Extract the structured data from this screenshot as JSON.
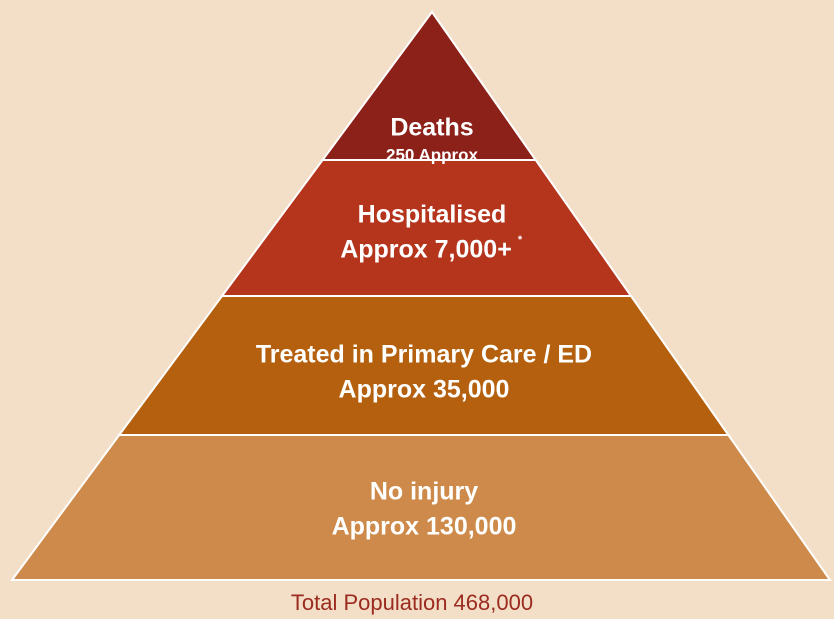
{
  "tiers": [
    {
      "label": "Deaths",
      "value": "250 Approx"
    },
    {
      "label": "Hospitalised",
      "value": "Approx 7,000+",
      "note": "*"
    },
    {
      "label": "Treated in Primary Care / ED",
      "value": "Approx 35,000"
    },
    {
      "label": "No injury",
      "value": "Approx 130,000"
    }
  ],
  "footer": "Total Population 468,000"
}
